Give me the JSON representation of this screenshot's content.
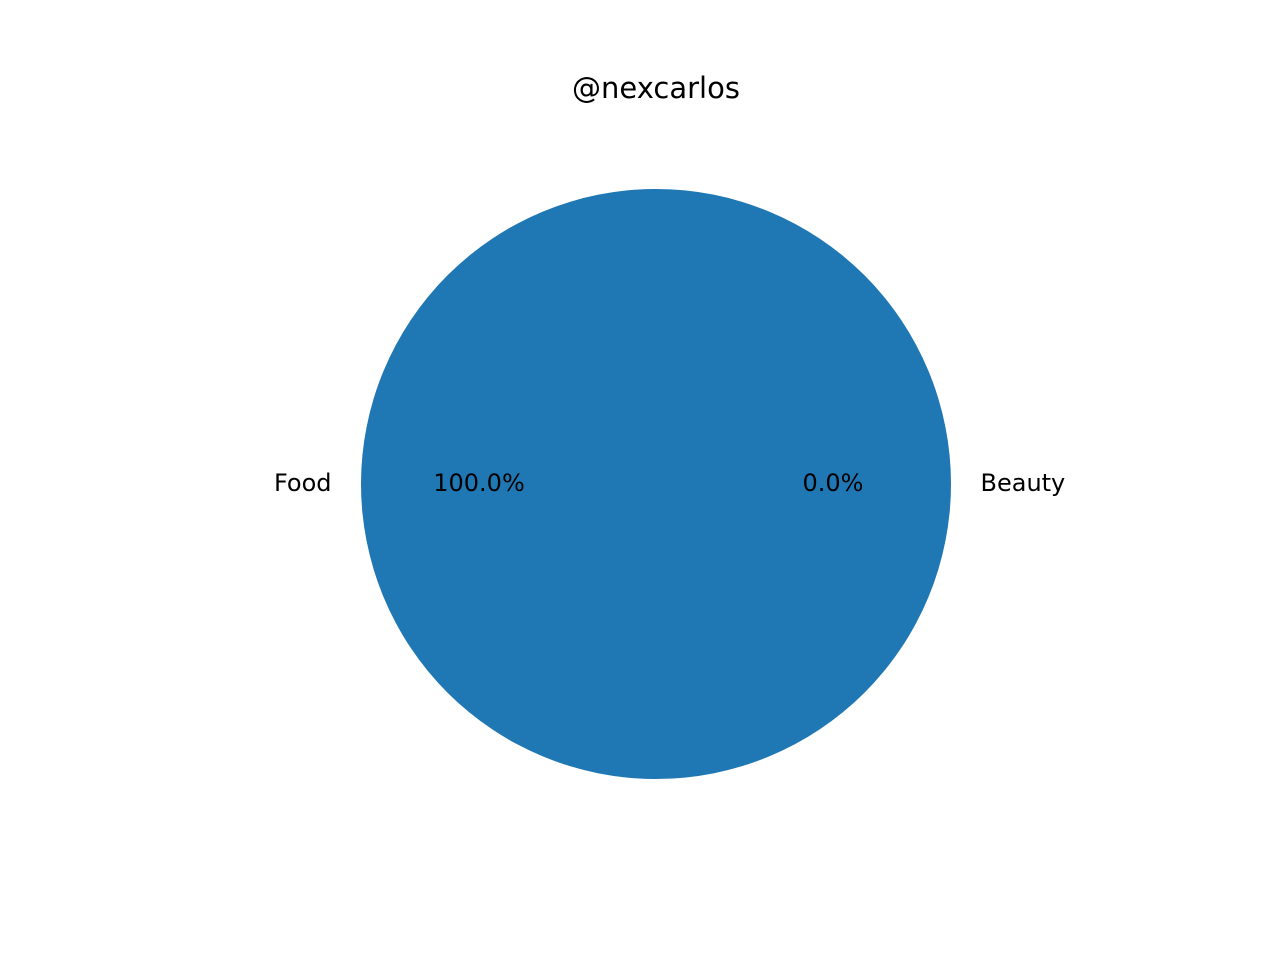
{
  "chart_data": {
    "type": "pie",
    "title": "@nexcarlos",
    "slices": [
      {
        "label": "Food",
        "value": 100.0,
        "pct_label": "100.0%",
        "color": "#1f77b4"
      },
      {
        "label": "Beauty",
        "value": 0.0,
        "pct_label": "0.0%",
        "color": "#ff7f0e"
      }
    ],
    "start_angle": "right (0 degrees), counter-clockwise",
    "legend": "none"
  }
}
